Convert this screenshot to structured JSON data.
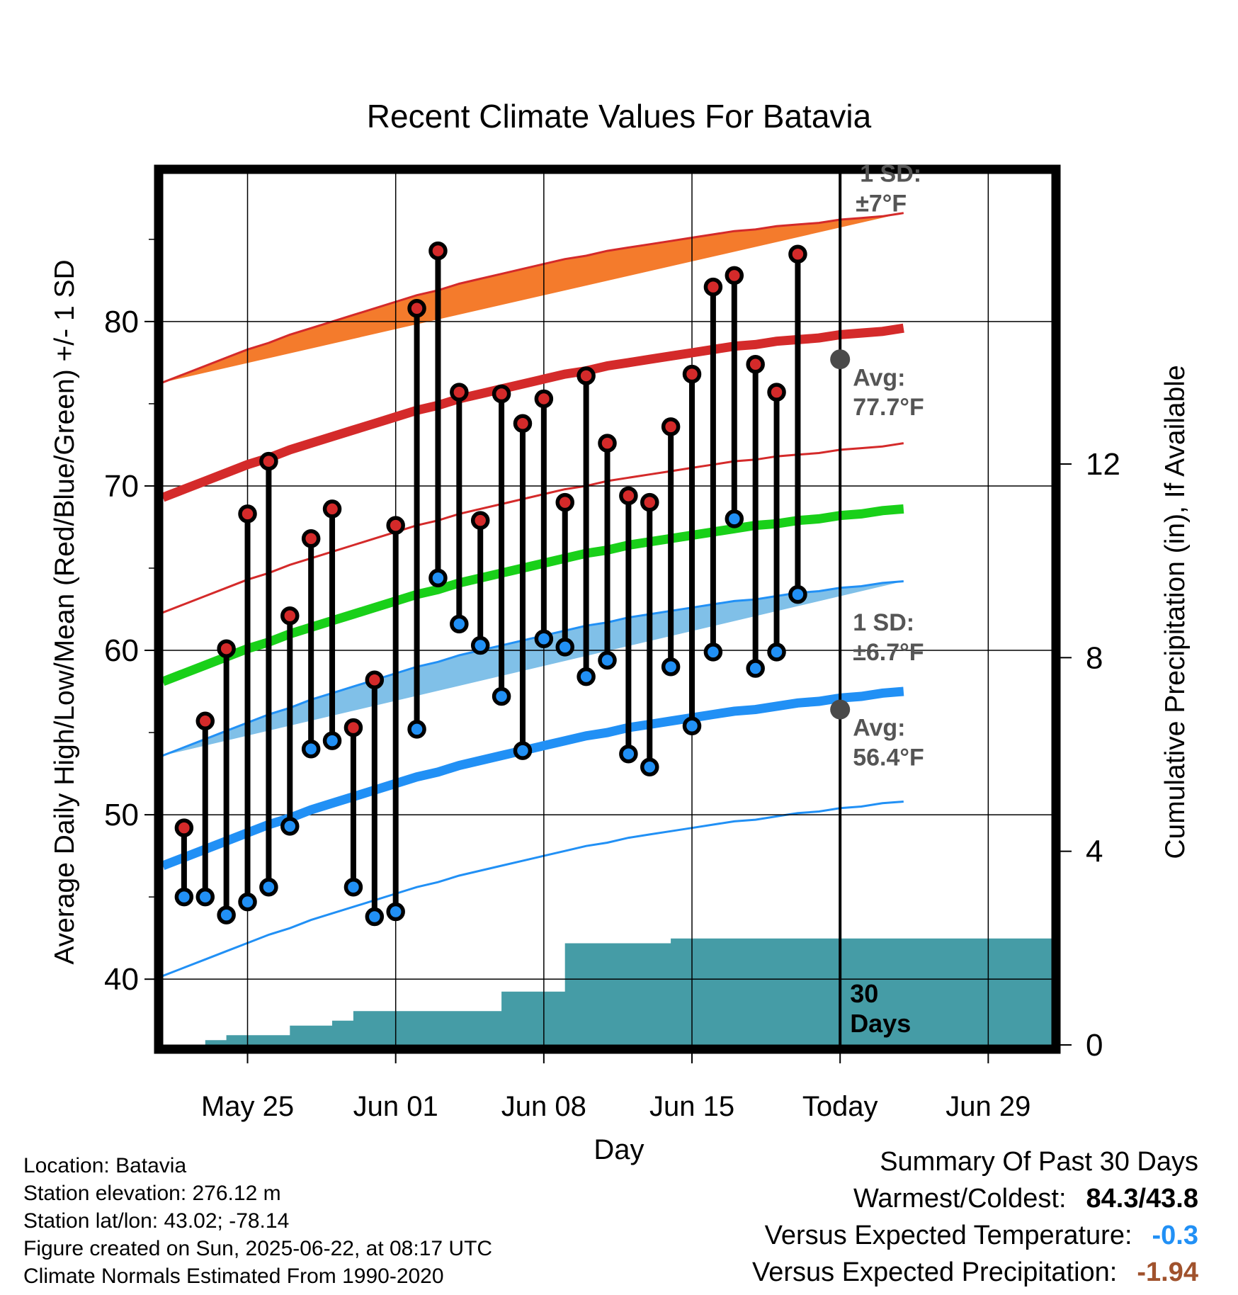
{
  "chart_data": {
    "type": "line",
    "title": "Recent Climate Values For Batavia",
    "xlabel": "Day",
    "ylabel": "Average Daily High/Low/Mean (Red/Blue/Green) +/- 1 SD",
    "y2label": "Cumulative Precipitation (in), If Available",
    "x_dates": [
      "May 22",
      "May 23",
      "May 24",
      "May 25",
      "May 26",
      "May 27",
      "May 28",
      "May 29",
      "May 30",
      "May 31",
      "Jun 01",
      "Jun 02",
      "Jun 03",
      "Jun 04",
      "Jun 05",
      "Jun 06",
      "Jun 07",
      "Jun 08",
      "Jun 09",
      "Jun 10",
      "Jun 11",
      "Jun 12",
      "Jun 13",
      "Jun 14",
      "Jun 15",
      "Jun 16",
      "Jun 17",
      "Jun 18",
      "Jun 19",
      "Jun 20",
      "Jun 21",
      "Jun 22",
      "Jun 23",
      "Jun 24",
      "Jun 25",
      "Jun 26",
      "Jun 27",
      "Jun 28",
      "Jun 29",
      "Jun 30",
      "Jul 01",
      "Jul 02"
    ],
    "xlim": [
      "May 21",
      "Jul 02"
    ],
    "x_tick_labels": [
      "May 25",
      "Jun 01",
      "Jun 08",
      "Jun 15",
      "Today",
      "Jun 29"
    ],
    "x_tick_dates": [
      "May 25",
      "Jun 01",
      "Jun 08",
      "Jun 15",
      "Jun 22",
      "Jun 29"
    ],
    "today": "Jun 22",
    "ylim": [
      36,
      89
    ],
    "y_ticks": [
      40,
      50,
      60,
      70,
      80
    ],
    "y2lim": [
      0,
      18
    ],
    "y2_ticks": [
      0,
      4,
      8,
      12
    ],
    "obs_dates": [
      "May 22",
      "May 23",
      "May 24",
      "May 25",
      "May 26",
      "May 27",
      "May 28",
      "May 29",
      "May 30",
      "May 31",
      "Jun 01",
      "Jun 02",
      "Jun 03",
      "Jun 04",
      "Jun 05",
      "Jun 06",
      "Jun 07",
      "Jun 08",
      "Jun 09",
      "Jun 10",
      "Jun 11",
      "Jun 12",
      "Jun 13",
      "Jun 14",
      "Jun 15",
      "Jun 16",
      "Jun 17",
      "Jun 18",
      "Jun 19",
      "Jun 20",
      "Jun 21"
    ],
    "series": [
      {
        "name": "High",
        "color": "#d42a2a",
        "values": [
          49.2,
          55.7,
          60.1,
          68.3,
          71.5,
          62.1,
          66.8,
          68.6,
          55.3,
          58.2,
          67.6,
          80.8,
          84.3,
          75.7,
          67.9,
          75.6,
          73.8,
          75.3,
          69.0,
          76.7,
          72.6,
          69.4,
          69.0,
          73.6,
          76.8,
          82.1,
          82.8,
          77.4,
          75.7,
          84.1,
          null
        ]
      },
      {
        "name": "Low",
        "color": "#2190f5",
        "values": [
          45.0,
          45.0,
          43.9,
          44.7,
          45.6,
          49.3,
          54.0,
          54.5,
          45.6,
          43.8,
          44.1,
          55.2,
          64.4,
          61.6,
          60.3,
          57.2,
          53.9,
          60.7,
          60.2,
          58.4,
          59.4,
          53.7,
          52.9,
          59.0,
          55.4,
          59.9,
          68.0,
          58.9,
          59.9,
          63.4,
          null
        ]
      },
      {
        "name": "Normal High",
        "color": "#d42a2a",
        "values": [
          69.8,
          70.3,
          70.8,
          71.3,
          71.7,
          72.2,
          72.6,
          73.0,
          73.4,
          73.8,
          74.2,
          74.6,
          74.9,
          75.3,
          75.6,
          75.9,
          76.2,
          76.5,
          76.8,
          77.0,
          77.3,
          77.5,
          77.7,
          77.9,
          78.1,
          78.3,
          78.5,
          78.6,
          78.8,
          78.9,
          79.0,
          79.2,
          79.3,
          79.4,
          79.6
        ]
      },
      {
        "name": "Normal Low",
        "color": "#2190f5",
        "values": [
          47.4,
          47.9,
          48.4,
          48.9,
          49.4,
          49.8,
          50.3,
          50.7,
          51.1,
          51.5,
          51.9,
          52.3,
          52.6,
          53.0,
          53.3,
          53.6,
          53.9,
          54.2,
          54.5,
          54.8,
          55.0,
          55.3,
          55.5,
          55.7,
          55.9,
          56.1,
          56.3,
          56.4,
          56.6,
          56.8,
          56.9,
          57.1,
          57.2,
          57.4,
          57.5
        ]
      },
      {
        "name": "Normal Mean",
        "color": "#19d019",
        "values": [
          58.6,
          59.1,
          59.6,
          60.1,
          60.5,
          61.0,
          61.4,
          61.8,
          62.2,
          62.6,
          63.0,
          63.4,
          63.7,
          64.1,
          64.4,
          64.7,
          65.0,
          65.3,
          65.6,
          65.9,
          66.1,
          66.4,
          66.6,
          66.8,
          67.0,
          67.2,
          67.4,
          67.6,
          67.7,
          67.9,
          68.0,
          68.2,
          68.3,
          68.5,
          68.6
        ]
      }
    ],
    "band_sd": {
      "high": 7.0,
      "low": 6.7
    },
    "precip_cumulative": [
      0.0,
      0.1,
      0.2,
      0.2,
      0.2,
      0.4,
      0.4,
      0.5,
      0.7,
      0.7,
      0.7,
      0.7,
      0.7,
      0.7,
      0.7,
      1.1,
      1.1,
      1.1,
      2.1,
      2.1,
      2.1,
      2.1,
      2.1,
      2.2,
      2.2,
      2.2,
      2.2,
      2.2,
      2.2,
      2.2,
      2.2
    ],
    "annotations": {
      "high_sd_label": "1 SD:",
      "high_sd_value": "±7°F",
      "high_avg_label": "Avg:",
      "high_avg_value": "77.7°F",
      "today_high_avg": 77.7,
      "low_sd_label": "1 SD:",
      "low_sd_value": "±6.7°F",
      "low_avg_label": "Avg:",
      "low_avg_value": "56.4°F",
      "today_low_avg": 56.4,
      "days_label_1": "30",
      "days_label_2": "Days"
    },
    "grid": true,
    "colors": {
      "high_band": "#f47b2c",
      "low_band": "#80c0e8",
      "precip": "#459ca6",
      "today_marker": "#4a4a4a"
    }
  },
  "info": {
    "location": "Location: Batavia",
    "elevation": "Station elevation: 276.12 m",
    "latlon": "Station lat/lon: 43.02; -78.14",
    "created": "Figure created on Sun, 2025-06-22, at 08:17 UTC",
    "normals": "Climate Normals Estimated From 1990-2020"
  },
  "summary": {
    "heading": "Summary Of Past 30 Days",
    "warm_cold_label": "Warmest/Coldest:",
    "warm_cold_value": "84.3/43.8",
    "temp_label": "Versus Expected Temperature:",
    "temp_value": "-0.3",
    "temp_color": "#2190f5",
    "precip_label": "Versus Expected Precipitation:",
    "precip_value": "-1.94",
    "precip_color": "#a0522d"
  }
}
